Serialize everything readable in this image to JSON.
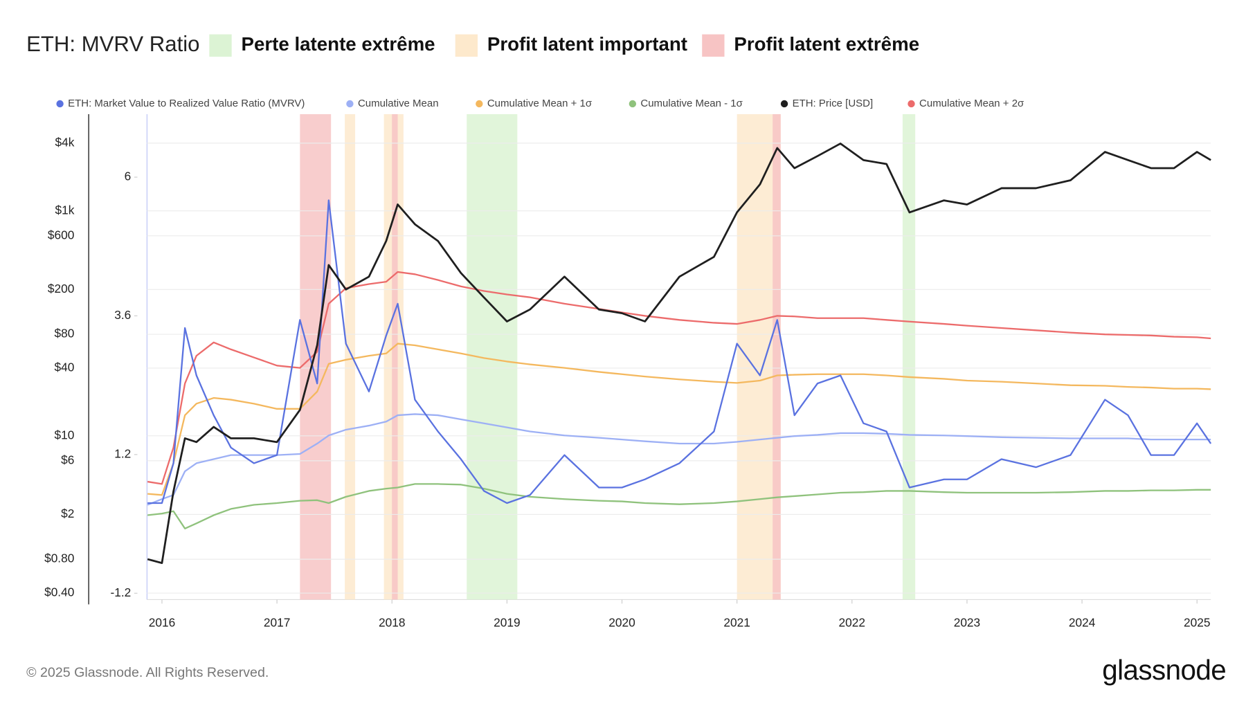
{
  "chart_data": {
    "type": "line",
    "title": "ETH: MVRV Ratio",
    "footer": "© 2025 Glassnode. All Rights Reserved.",
    "brand": "glassnode",
    "x": [
      2015.875,
      2016.0,
      2016.1,
      2016.2,
      2016.3,
      2016.45,
      2016.6,
      2016.8,
      2017.0,
      2017.2,
      2017.35,
      2017.45,
      2017.6,
      2017.8,
      2017.95,
      2018.05,
      2018.2,
      2018.4,
      2018.6,
      2018.8,
      2019.0,
      2019.2,
      2019.5,
      2019.8,
      2020.0,
      2020.2,
      2020.5,
      2020.8,
      2021.0,
      2021.2,
      2021.35,
      2021.5,
      2021.7,
      2021.9,
      2022.1,
      2022.3,
      2022.5,
      2022.8,
      2023.0,
      2023.3,
      2023.6,
      2023.9,
      2024.2,
      2024.4,
      2024.6,
      2024.8,
      2025.0,
      2025.12
    ],
    "xlim": [
      2015.87,
      2025.12
    ],
    "xticks": [
      2016,
      2017,
      2018,
      2019,
      2020,
      2021,
      2022,
      2023,
      2024,
      2025
    ],
    "ylim": [
      0.35,
      7240
    ],
    "ylog": true,
    "yticks": [
      {
        "value": 0.4,
        "label": "$0.40"
      },
      {
        "value": 0.8,
        "label": "$0.80"
      },
      {
        "value": 2,
        "label": "$2"
      },
      {
        "value": 6,
        "label": "$6"
      },
      {
        "value": 10,
        "label": "$10"
      },
      {
        "value": 40,
        "label": "$40"
      },
      {
        "value": 80,
        "label": "$80"
      },
      {
        "value": 200,
        "label": "$200"
      },
      {
        "value": 600,
        "label": "$600"
      },
      {
        "value": 1000,
        "label": "$1k"
      },
      {
        "value": 4000,
        "label": "$4k"
      }
    ],
    "y2lim": [
      -1.31,
      7.09
    ],
    "y2ticks": [
      -1.2,
      1.2,
      3.6,
      6
    ],
    "grid": true,
    "series": [
      {
        "name": "ETH: Market Value to Realized Value Ratio (MVRV)",
        "color": "#5a72e0",
        "axis": "y2",
        "values": [
          0.36,
          0.36,
          1.05,
          3.39,
          2.57,
          1.88,
          1.32,
          1.05,
          1.19,
          3.53,
          2.43,
          5.6,
          3.12,
          2.29,
          3.26,
          3.81,
          2.15,
          1.6,
          1.12,
          0.57,
          0.36,
          0.5,
          1.19,
          0.63,
          0.63,
          0.77,
          1.05,
          1.6,
          3.12,
          2.57,
          3.53,
          1.88,
          2.43,
          2.57,
          1.74,
          1.6,
          0.63,
          0.77,
          0.77,
          1.12,
          0.98,
          1.19,
          2.15,
          1.88,
          1.19,
          1.19,
          1.74,
          1.39
        ]
      },
      {
        "name": "Cumulative Mean",
        "color": "#9db0f5",
        "axis": "y2",
        "values": [
          0.33,
          0.43,
          0.5,
          0.91,
          1.05,
          1.12,
          1.19,
          1.19,
          1.19,
          1.21,
          1.39,
          1.53,
          1.63,
          1.7,
          1.77,
          1.88,
          1.9,
          1.88,
          1.81,
          1.74,
          1.67,
          1.6,
          1.53,
          1.49,
          1.46,
          1.43,
          1.39,
          1.39,
          1.42,
          1.46,
          1.49,
          1.52,
          1.54,
          1.57,
          1.57,
          1.56,
          1.54,
          1.53,
          1.52,
          1.5,
          1.49,
          1.48,
          1.48,
          1.48,
          1.46,
          1.46,
          1.46,
          1.46
        ]
      },
      {
        "name": "Cumulative Mean + 1σ",
        "color": "#f4b85e",
        "axis": "y2",
        "values": [
          0.52,
          0.5,
          1.05,
          1.88,
          2.08,
          2.18,
          2.15,
          2.08,
          1.99,
          1.99,
          2.29,
          2.77,
          2.84,
          2.91,
          2.95,
          3.12,
          3.09,
          3.02,
          2.95,
          2.87,
          2.81,
          2.76,
          2.7,
          2.63,
          2.59,
          2.55,
          2.5,
          2.46,
          2.44,
          2.48,
          2.57,
          2.58,
          2.59,
          2.59,
          2.59,
          2.57,
          2.54,
          2.51,
          2.48,
          2.46,
          2.43,
          2.4,
          2.39,
          2.37,
          2.36,
          2.34,
          2.34,
          2.33
        ]
      },
      {
        "name": "Cumulative Mean - 1σ",
        "color": "#8fc27c",
        "axis": "y2",
        "values": [
          0.15,
          0.18,
          0.22,
          -0.08,
          0.01,
          0.15,
          0.26,
          0.33,
          0.36,
          0.4,
          0.41,
          0.36,
          0.47,
          0.57,
          0.61,
          0.63,
          0.69,
          0.69,
          0.68,
          0.61,
          0.52,
          0.47,
          0.43,
          0.4,
          0.39,
          0.36,
          0.34,
          0.36,
          0.39,
          0.43,
          0.46,
          0.48,
          0.51,
          0.54,
          0.55,
          0.57,
          0.57,
          0.55,
          0.54,
          0.54,
          0.54,
          0.55,
          0.57,
          0.57,
          0.58,
          0.58,
          0.59,
          0.59
        ]
      },
      {
        "name": "ETH: Price [USD]",
        "color": "#1f1f1f",
        "axis": "y",
        "values": [
          0.8,
          0.74,
          3.2,
          9.5,
          8.8,
          12,
          9.5,
          9.5,
          8.8,
          17,
          64,
          330,
          200,
          260,
          540,
          1140,
          760,
          540,
          280,
          170,
          104,
          133,
          260,
          133,
          123,
          104,
          260,
          390,
          970,
          1720,
          3620,
          2400,
          3070,
          3970,
          2830,
          2610,
          970,
          1240,
          1140,
          1590,
          1590,
          1870,
          3340,
          2830,
          2400,
          2400,
          3340,
          2830
        ]
      },
      {
        "name": "Cumulative Mean + 2σ",
        "color": "#ec6b6b",
        "axis": "y2",
        "values": [
          0.73,
          0.69,
          1.32,
          2.43,
          2.91,
          3.14,
          3.02,
          2.88,
          2.74,
          2.7,
          2.98,
          3.81,
          4.08,
          4.15,
          4.19,
          4.36,
          4.32,
          4.22,
          4.11,
          4.03,
          3.97,
          3.92,
          3.81,
          3.72,
          3.66,
          3.6,
          3.53,
          3.48,
          3.46,
          3.53,
          3.6,
          3.59,
          3.56,
          3.56,
          3.56,
          3.53,
          3.5,
          3.46,
          3.43,
          3.39,
          3.35,
          3.31,
          3.28,
          3.27,
          3.26,
          3.24,
          3.23,
          3.21
        ]
      }
    ],
    "bands": [
      {
        "name": "Perte latente extrême",
        "color": "#dcf3d4",
        "ranges": [
          [
            2018.65,
            2019.09
          ],
          [
            2022.44,
            2022.55
          ]
        ]
      },
      {
        "name": "Profit latent important",
        "color": "#fde9cc",
        "ranges": [
          [
            2017.59,
            2017.68
          ],
          [
            2017.93,
            2018.1
          ],
          [
            2021.0,
            2021.38
          ]
        ]
      },
      {
        "name": "Profit latent extrême",
        "color": "#f7c4c4",
        "ranges": [
          [
            2017.2,
            2017.47
          ],
          [
            2018.0,
            2018.05
          ],
          [
            2021.31,
            2021.38
          ]
        ]
      }
    ]
  }
}
